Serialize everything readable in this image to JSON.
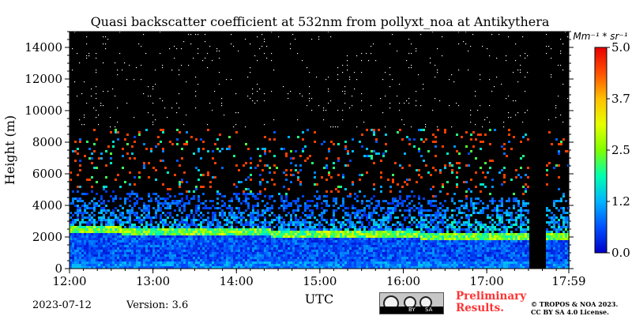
{
  "chart_data": {
    "type": "heatmap",
    "title": "Quasi backscatter coefficient at 532nm from pollyxt_noa at Antikythera",
    "xlabel": "UTC",
    "ylabel": "Height (m)",
    "x_ticks": [
      "12:00",
      "13:00",
      "14:00",
      "15:00",
      "16:00",
      "17:00",
      "17:59"
    ],
    "x_range": [
      "12:00",
      "17:59"
    ],
    "y_ticks": [
      0,
      2000,
      4000,
      6000,
      8000,
      10000,
      12000,
      14000
    ],
    "ylim": [
      0,
      15000
    ],
    "colorbar": {
      "label": "Mm⁻¹ * sr⁻¹",
      "ticks": [
        "0.0",
        "1.2",
        "2.5",
        "3.7",
        "5.0"
      ],
      "range": [
        0,
        5
      ],
      "colormap": [
        "#0000c8",
        "#0050ff",
        "#00b4ff",
        "#00ffb0",
        "#80ff00",
        "#e6ff00",
        "#ffc000",
        "#ff5000",
        "#e60000"
      ]
    },
    "features": {
      "aerosol_layer_top_height_m": 2500,
      "aerosol_layer_top_height_end_m": 2000,
      "data_gap": [
        "17:32",
        "17:42"
      ],
      "background_color": "#000000"
    }
  },
  "footer": {
    "date": "2023-07-12",
    "version": "Version: 3.6",
    "license_badge": "CC BY SA",
    "license_by": "BY",
    "license_sa": "SA",
    "preliminary_line1": "Preliminary",
    "preliminary_line2": "Results.",
    "copyright_line1": "© TROPOS & NOA 2023.",
    "copyright_line2": "CC BY SA 4.0 License."
  }
}
